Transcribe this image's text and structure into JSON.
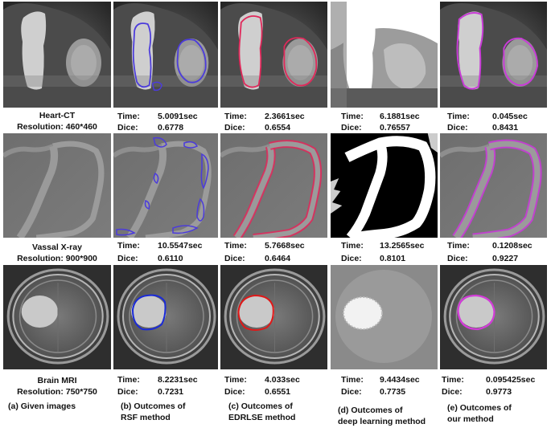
{
  "colors": {
    "rsf": "#4b3bdc",
    "edrlse": "#e0285a",
    "ours": "#c83cd6",
    "rsf_mri": "#1a2ad8",
    "edrlse_mri": "#e01818",
    "ours_mri": "#d23cd8"
  },
  "rows": [
    {
      "name": "Heart-CT",
      "resolution": "Resolution: 460*460",
      "results": [
        {
          "time_label": "Time:",
          "time": "5.0091sec",
          "dice_label": "Dice:",
          "dice": "0.6778"
        },
        {
          "time_label": "Time:",
          "time": "2.3661sec",
          "dice_label": "Dice:",
          "dice": "0.6554"
        },
        {
          "time_label": "Time:",
          "time": "6.1881sec",
          "dice_label": "Dice:",
          "dice": "0.76557"
        },
        {
          "time_label": "Time:",
          "time": "0.045sec",
          "dice_label": "Dice:",
          "dice": "0.8431"
        }
      ]
    },
    {
      "name": "Vassal X-ray",
      "resolution": "Resolution: 900*900",
      "results": [
        {
          "time_label": "Time:",
          "time": "10.5547sec",
          "dice_label": "Dice:",
          "dice": "0.6110"
        },
        {
          "time_label": "Time:",
          "time": "5.7668sec",
          "dice_label": "Dice:",
          "dice": "0.6464"
        },
        {
          "time_label": "Time:",
          "time": "13.2565sec",
          "dice_label": "Dice:",
          "dice": "0.8101"
        },
        {
          "time_label": "Time:",
          "time": "0.1208sec",
          "dice_label": "Dice:",
          "dice": "0.9227"
        }
      ]
    },
    {
      "name": "Brain MRI",
      "resolution": "Resolution: 750*750",
      "results": [
        {
          "time_label": "Time:",
          "time": "8.2231sec",
          "dice_label": "Dice:",
          "dice": "0.7231"
        },
        {
          "time_label": "Time:",
          "time": "4.033sec",
          "dice_label": "Dice:",
          "dice": "0.6551"
        },
        {
          "time_label": "Time:",
          "time": "9.4434sec",
          "dice_label": "Dice:",
          "dice": "0.7735"
        },
        {
          "time_label": "Time:",
          "time": "0.095425sec",
          "dice_label": "Dice:",
          "dice": "0.9773"
        }
      ]
    }
  ],
  "captions": {
    "a": "(a)   Given images",
    "b1": "(b) Outcomes of",
    "b2": "RSF method",
    "c1": "(c) Outcomes of",
    "c2": "EDRLSE method",
    "d1": "(d) Outcomes of",
    "d2": "deep learning method",
    "e1": "(e) Outcomes of",
    "e2": "our method"
  }
}
